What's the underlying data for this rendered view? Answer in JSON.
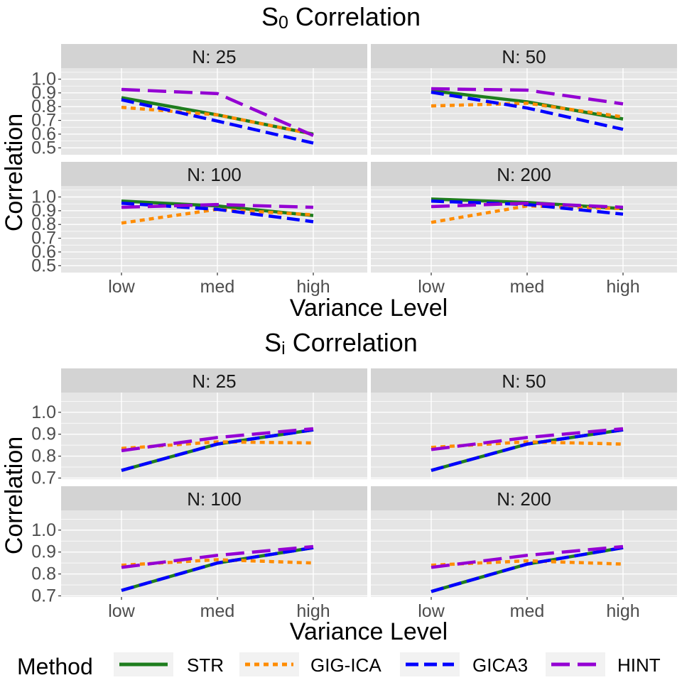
{
  "chart_data": [
    {
      "type": "line",
      "title": "S",
      "title_subscript": "0",
      "title_suffix": " Correlation",
      "xlabel": "Variance Level",
      "ylabel": "Correlation",
      "categories": [
        "low",
        "med",
        "high"
      ],
      "ylim": [
        0.45,
        1.08
      ],
      "yticks": [
        "0.5",
        "0.6",
        "0.7",
        "0.8",
        "0.9",
        "1.0"
      ],
      "panels": [
        {
          "label": "N: 25",
          "series": [
            {
              "name": "STR",
              "values": [
                0.865,
                0.74,
                0.6
              ]
            },
            {
              "name": "GIG-ICA",
              "values": [
                0.795,
                0.74,
                0.6
              ]
            },
            {
              "name": "GICA3",
              "values": [
                0.85,
                0.695,
                0.535
              ]
            },
            {
              "name": "HINT",
              "values": [
                0.925,
                0.895,
                0.59
              ]
            }
          ]
        },
        {
          "label": "N: 50",
          "series": [
            {
              "name": "STR",
              "values": [
                0.915,
                0.835,
                0.71
              ]
            },
            {
              "name": "GIG-ICA",
              "values": [
                0.805,
                0.825,
                0.725
              ]
            },
            {
              "name": "GICA3",
              "values": [
                0.905,
                0.79,
                0.635
              ]
            },
            {
              "name": "HINT",
              "values": [
                0.93,
                0.92,
                0.82
              ]
            }
          ]
        },
        {
          "label": "N: 100",
          "series": [
            {
              "name": "STR",
              "values": [
                0.97,
                0.935,
                0.865
              ]
            },
            {
              "name": "GIG-ICA",
              "values": [
                0.81,
                0.91,
                0.87
              ]
            },
            {
              "name": "GICA3",
              "values": [
                0.955,
                0.91,
                0.82
              ]
            },
            {
              "name": "HINT",
              "values": [
                0.925,
                0.945,
                0.925
              ]
            }
          ]
        },
        {
          "label": "N: 200",
          "series": [
            {
              "name": "STR",
              "values": [
                0.985,
                0.96,
                0.915
              ]
            },
            {
              "name": "GIG-ICA",
              "values": [
                0.815,
                0.935,
                0.915
              ]
            },
            {
              "name": "GICA3",
              "values": [
                0.97,
                0.945,
                0.875
              ]
            },
            {
              "name": "HINT",
              "values": [
                0.93,
                0.955,
                0.925
              ]
            }
          ]
        }
      ]
    },
    {
      "type": "line",
      "title": "S",
      "title_subscript": "i",
      "title_suffix": " Correlation",
      "xlabel": "Variance Level",
      "ylabel": "Correlation",
      "categories": [
        "low",
        "med",
        "high"
      ],
      "ylim": [
        0.695,
        1.09
      ],
      "yticks": [
        "0.7",
        "0.8",
        "0.9",
        "1.0"
      ],
      "panels": [
        {
          "label": "N: 25",
          "series": [
            {
              "name": "STR",
              "values": [
                0.735,
                0.855,
                0.92
              ]
            },
            {
              "name": "GIG-ICA",
              "values": [
                0.835,
                0.865,
                0.86
              ]
            },
            {
              "name": "GICA3",
              "values": [
                0.735,
                0.855,
                0.92
              ]
            },
            {
              "name": "HINT",
              "values": [
                0.825,
                0.885,
                0.925
              ]
            }
          ]
        },
        {
          "label": "N: 50",
          "series": [
            {
              "name": "STR",
              "values": [
                0.735,
                0.855,
                0.92
              ]
            },
            {
              "name": "GIG-ICA",
              "values": [
                0.84,
                0.865,
                0.855
              ]
            },
            {
              "name": "GICA3",
              "values": [
                0.735,
                0.855,
                0.92
              ]
            },
            {
              "name": "HINT",
              "values": [
                0.83,
                0.885,
                0.925
              ]
            }
          ]
        },
        {
          "label": "N: 100",
          "series": [
            {
              "name": "STR",
              "values": [
                0.725,
                0.85,
                0.92
              ]
            },
            {
              "name": "GIG-ICA",
              "values": [
                0.84,
                0.865,
                0.85
              ]
            },
            {
              "name": "GICA3",
              "values": [
                0.725,
                0.85,
                0.92
              ]
            },
            {
              "name": "HINT",
              "values": [
                0.83,
                0.885,
                0.925
              ]
            }
          ]
        },
        {
          "label": "N: 200",
          "series": [
            {
              "name": "STR",
              "values": [
                0.72,
                0.845,
                0.92
              ]
            },
            {
              "name": "GIG-ICA",
              "values": [
                0.84,
                0.86,
                0.845
              ]
            },
            {
              "name": "GICA3",
              "values": [
                0.72,
                0.845,
                0.92
              ]
            },
            {
              "name": "HINT",
              "values": [
                0.83,
                0.885,
                0.925
              ]
            }
          ]
        }
      ]
    }
  ],
  "legend": {
    "title": "Method",
    "placement": "bottom",
    "items": [
      {
        "name": "STR",
        "color": "#1e7d1e",
        "dash": "solid"
      },
      {
        "name": "GIG-ICA",
        "color": "#ff8c00",
        "dash": "dotted"
      },
      {
        "name": "GICA3",
        "color": "#0000ff",
        "dash": "dashed"
      },
      {
        "name": "HINT",
        "color": "#9400d3",
        "dash": "longdash"
      }
    ]
  },
  "colors": {
    "panel_bg": "#e5e5e5",
    "strip_bg": "#d3d3d3",
    "grid": "#ffffff",
    "text": "#4d4d4d",
    "title": "#000000"
  }
}
